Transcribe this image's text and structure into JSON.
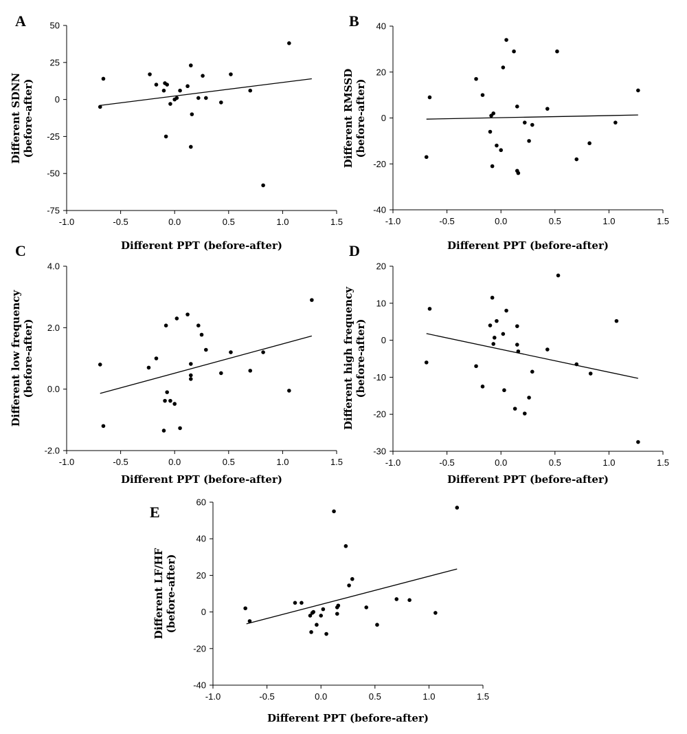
{
  "chart_data": [
    {
      "type": "scatter",
      "panel": "A",
      "xlabel": "Different PPT (before-after)",
      "ylabel": [
        "Different SDNN",
        "(before-after)"
      ],
      "xlim": [
        -1.0,
        1.5
      ],
      "ylim": [
        -75,
        50
      ],
      "x_ticks": [
        "-1.0",
        "-0.5",
        "0.0",
        "0.5",
        "1.0",
        "1.5"
      ],
      "y_ticks": [
        "-75",
        "-50",
        "-25",
        "0",
        "25",
        "50"
      ],
      "points": [
        [
          -0.69,
          -5
        ],
        [
          -0.66,
          14
        ],
        [
          -0.23,
          17
        ],
        [
          -0.17,
          10
        ],
        [
          -0.1,
          6
        ],
        [
          -0.09,
          11
        ],
        [
          -0.08,
          -25
        ],
        [
          -0.07,
          10
        ],
        [
          -0.04,
          -3
        ],
        [
          0.0,
          0
        ],
        [
          0.02,
          1
        ],
        [
          0.05,
          6
        ],
        [
          0.12,
          9
        ],
        [
          0.15,
          23
        ],
        [
          0.15,
          -32
        ],
        [
          0.16,
          -10
        ],
        [
          0.22,
          1
        ],
        [
          0.26,
          16
        ],
        [
          0.29,
          1
        ],
        [
          0.43,
          -2
        ],
        [
          0.52,
          17
        ],
        [
          0.7,
          6
        ],
        [
          0.82,
          -58
        ],
        [
          1.06,
          38
        ]
      ],
      "trendline": [
        [
          -0.69,
          -4
        ],
        [
          1.27,
          14
        ]
      ]
    },
    {
      "type": "scatter",
      "panel": "B",
      "xlabel": "Different PPT (before-after)",
      "ylabel": [
        "Different RMSSD",
        "(before-after)"
      ],
      "xlim": [
        -1.0,
        1.5
      ],
      "ylim": [
        -40,
        40
      ],
      "x_ticks": [
        "-1.0",
        "-0.5",
        "0.0",
        "0.5",
        "1.0",
        "1.5"
      ],
      "y_ticks": [
        "-40",
        "-20",
        "0",
        "20",
        "40"
      ],
      "points": [
        [
          -0.69,
          -17
        ],
        [
          -0.66,
          9
        ],
        [
          -0.23,
          17
        ],
        [
          -0.17,
          10
        ],
        [
          -0.1,
          -6
        ],
        [
          -0.09,
          1
        ],
        [
          -0.08,
          -21
        ],
        [
          -0.07,
          2
        ],
        [
          -0.04,
          -12
        ],
        [
          0.0,
          -14
        ],
        [
          0.02,
          22
        ],
        [
          0.05,
          34
        ],
        [
          0.12,
          29
        ],
        [
          0.15,
          -23
        ],
        [
          0.15,
          5
        ],
        [
          0.16,
          -24
        ],
        [
          0.22,
          -2
        ],
        [
          0.26,
          -10
        ],
        [
          0.29,
          -3
        ],
        [
          0.43,
          4
        ],
        [
          0.52,
          29
        ],
        [
          0.7,
          -18
        ],
        [
          0.82,
          -11
        ],
        [
          1.06,
          -2
        ],
        [
          1.27,
          12
        ]
      ],
      "trendline": [
        [
          -0.69,
          -0.5
        ],
        [
          1.27,
          1.3
        ]
      ]
    },
    {
      "type": "scatter",
      "panel": "C",
      "xlabel": "Different PPT (before-after)",
      "ylabel": [
        "Different low frequency",
        "(before-after)"
      ],
      "xlim": [
        -1.0,
        1.5
      ],
      "ylim": [
        -2.0,
        4.0
      ],
      "x_ticks": [
        "-1.0",
        "-0.5",
        "0.0",
        "0.5",
        "1.0",
        "1.5"
      ],
      "y_ticks": [
        "-2.0",
        "0.0",
        "2.0",
        "4.0"
      ],
      "points": [
        [
          -0.69,
          0.8
        ],
        [
          -0.66,
          -1.2
        ],
        [
          -0.24,
          0.7
        ],
        [
          -0.17,
          1.0
        ],
        [
          -0.1,
          -1.35
        ],
        [
          -0.09,
          -0.38
        ],
        [
          -0.08,
          2.07
        ],
        [
          -0.07,
          -0.1
        ],
        [
          -0.04,
          -0.38
        ],
        [
          0.0,
          -0.48
        ],
        [
          0.02,
          2.3
        ],
        [
          0.05,
          -1.27
        ],
        [
          0.12,
          2.43
        ],
        [
          0.15,
          0.82
        ],
        [
          0.15,
          0.45
        ],
        [
          0.15,
          0.33
        ],
        [
          0.22,
          2.07
        ],
        [
          0.25,
          1.77
        ],
        [
          0.29,
          1.28
        ],
        [
          0.43,
          0.52
        ],
        [
          0.52,
          1.2
        ],
        [
          0.7,
          0.6
        ],
        [
          0.82,
          1.2
        ],
        [
          1.06,
          -0.05
        ],
        [
          1.27,
          2.9
        ]
      ],
      "trendline": [
        [
          -0.69,
          -0.14
        ],
        [
          1.27,
          1.73
        ]
      ]
    },
    {
      "type": "scatter",
      "panel": "D",
      "xlabel": "Different PPT (before-after)",
      "ylabel": [
        "Different high frequency",
        "(before-after)"
      ],
      "xlim": [
        -1.0,
        1.5
      ],
      "ylim": [
        -30,
        20
      ],
      "x_ticks": [
        "-1.0",
        "-0.5",
        "0.0",
        "0.5",
        "1.0",
        "1.5"
      ],
      "y_ticks": [
        "-30",
        "-20",
        "-10",
        "0",
        "10",
        "20"
      ],
      "points": [
        [
          -0.69,
          -6
        ],
        [
          -0.66,
          8.5
        ],
        [
          -0.23,
          -7
        ],
        [
          -0.17,
          -12.5
        ],
        [
          -0.1,
          4
        ],
        [
          -0.08,
          11.5
        ],
        [
          -0.07,
          -1
        ],
        [
          -0.06,
          0.7
        ],
        [
          -0.04,
          5.2
        ],
        [
          0.02,
          1.7
        ],
        [
          0.03,
          -13.5
        ],
        [
          0.05,
          8
        ],
        [
          0.13,
          -18.5
        ],
        [
          0.15,
          3.8
        ],
        [
          0.15,
          -1.2
        ],
        [
          0.16,
          -3
        ],
        [
          0.22,
          -19.8
        ],
        [
          0.26,
          -15.5
        ],
        [
          0.29,
          -8.5
        ],
        [
          0.43,
          -2.5
        ],
        [
          0.53,
          17.5
        ],
        [
          0.7,
          -6.5
        ],
        [
          0.83,
          -9
        ],
        [
          1.07,
          5.2
        ],
        [
          1.27,
          -27.5
        ]
      ],
      "trendline": [
        [
          -0.69,
          1.8
        ],
        [
          1.27,
          -10.3
        ]
      ]
    },
    {
      "type": "scatter",
      "panel": "E",
      "xlabel": "Different PPT (before-after)",
      "ylabel": [
        "Different LF/HF",
        "(before-after)"
      ],
      "xlim": [
        -1.0,
        1.5
      ],
      "ylim": [
        -40,
        60
      ],
      "x_ticks": [
        "-1.0",
        "-0.5",
        "0.0",
        "0.5",
        "1.0",
        "1.5"
      ],
      "y_ticks": [
        "-40",
        "-20",
        "0",
        "20",
        "40",
        "60"
      ],
      "points": [
        [
          -0.7,
          2
        ],
        [
          -0.66,
          -5
        ],
        [
          -0.24,
          5
        ],
        [
          -0.18,
          5
        ],
        [
          -0.1,
          -2
        ],
        [
          -0.09,
          -11
        ],
        [
          -0.08,
          -0.5
        ],
        [
          -0.07,
          0
        ],
        [
          -0.04,
          -7
        ],
        [
          0.0,
          -2
        ],
        [
          0.02,
          1.5
        ],
        [
          0.05,
          -12
        ],
        [
          0.12,
          55
        ],
        [
          0.15,
          -1
        ],
        [
          0.15,
          2.5
        ],
        [
          0.16,
          3.5
        ],
        [
          0.23,
          36
        ],
        [
          0.26,
          14.5
        ],
        [
          0.29,
          18
        ],
        [
          0.42,
          2.5
        ],
        [
          0.52,
          -7
        ],
        [
          0.7,
          7
        ],
        [
          0.82,
          6.5
        ],
        [
          1.06,
          -0.5
        ],
        [
          1.26,
          57
        ]
      ],
      "trendline": [
        [
          -0.69,
          -6.5
        ],
        [
          1.26,
          23.5
        ]
      ]
    }
  ]
}
